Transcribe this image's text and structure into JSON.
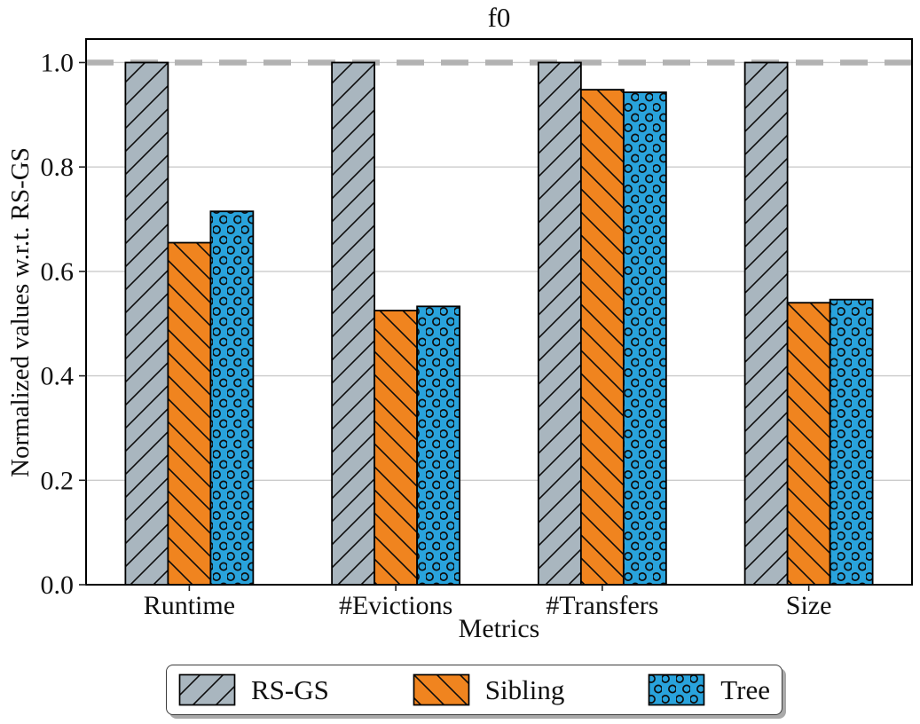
{
  "figure": {
    "background": "#ffffff"
  },
  "chart_data": {
    "type": "bar",
    "title": "f0",
    "xlabel": "Metrics",
    "ylabel": "Normalized values w.r.t. RS-GS",
    "categories": [
      "Runtime",
      "#Evictions",
      "#Transfers",
      "Size"
    ],
    "series": [
      {
        "name": "RS-GS",
        "color": "#a9b6bf",
        "hatch": "/",
        "values": [
          1.0,
          1.0,
          1.0,
          1.0
        ]
      },
      {
        "name": "Sibling",
        "color": "#f0841f",
        "hatch": "\\",
        "values": [
          0.655,
          0.525,
          0.948,
          0.54
        ]
      },
      {
        "name": "Tree",
        "color": "#29a3dc",
        "hatch": "o",
        "values": [
          0.715,
          0.533,
          0.943,
          0.546
        ]
      }
    ],
    "ylim": [
      0,
      1.045
    ],
    "yticks": [
      0.0,
      0.2,
      0.4,
      0.6,
      0.8,
      1.0
    ],
    "grid": true,
    "grid_color": "#cbcbcb",
    "reference_line": {
      "y": 1.0,
      "style": "dashed",
      "color": "#b2b2b2"
    },
    "bar_edge_color": "#000000",
    "legend_position": "bottom"
  },
  "legend": {
    "items": [
      "RS-GS",
      "Sibling",
      "Tree"
    ]
  }
}
